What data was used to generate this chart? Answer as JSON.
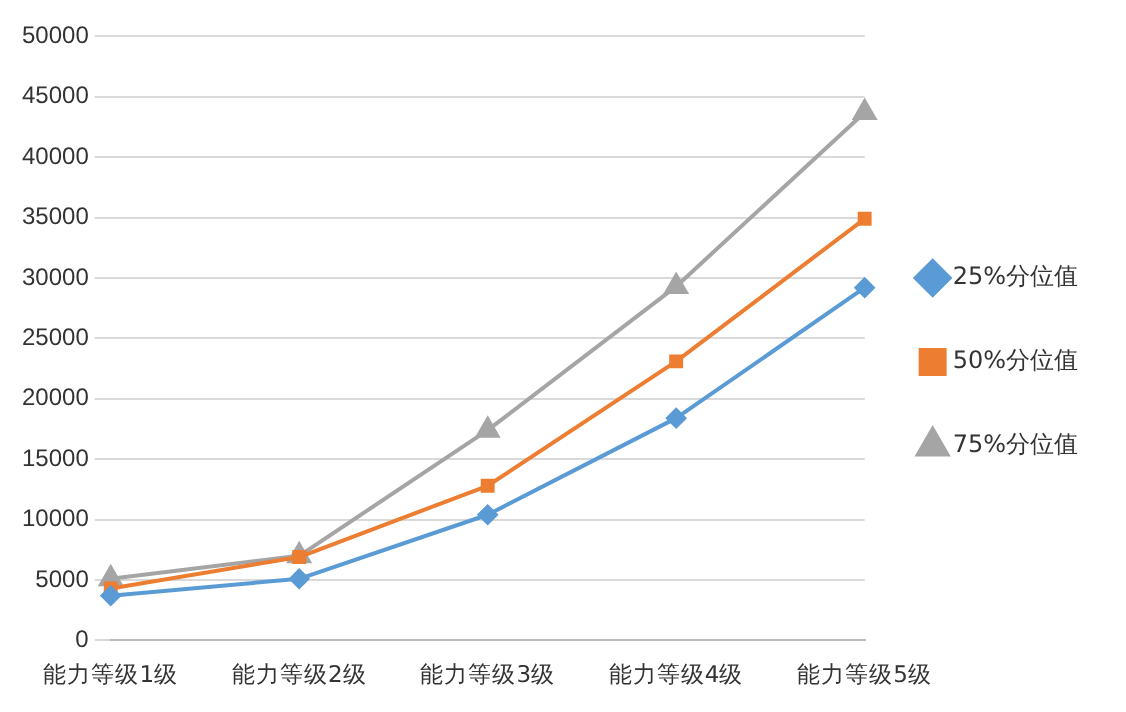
{
  "chart_data": {
    "type": "line",
    "categories": [
      "能力等级1级",
      "能力等级2级",
      "能力等级3级",
      "能力等级4级",
      "能力等级5级"
    ],
    "series": [
      {
        "name": "25%分位值",
        "color": "#5b9bd5",
        "marker": "diamond",
        "values": [
          3700,
          5100,
          10400,
          18400,
          29200
        ]
      },
      {
        "name": "50%分位值",
        "color": "#ed7d31",
        "marker": "square",
        "values": [
          4300,
          6900,
          12800,
          23100,
          34900
        ]
      },
      {
        "name": "75%分位值",
        "color": "#a5a5a5",
        "marker": "triangle",
        "values": [
          5100,
          7000,
          17400,
          29300,
          43700
        ]
      }
    ],
    "ylim": [
      0,
      50000
    ],
    "yticks": [
      0,
      5000,
      10000,
      15000,
      20000,
      25000,
      30000,
      35000,
      40000,
      45000,
      50000
    ],
    "grid": "y",
    "legend": "right"
  }
}
